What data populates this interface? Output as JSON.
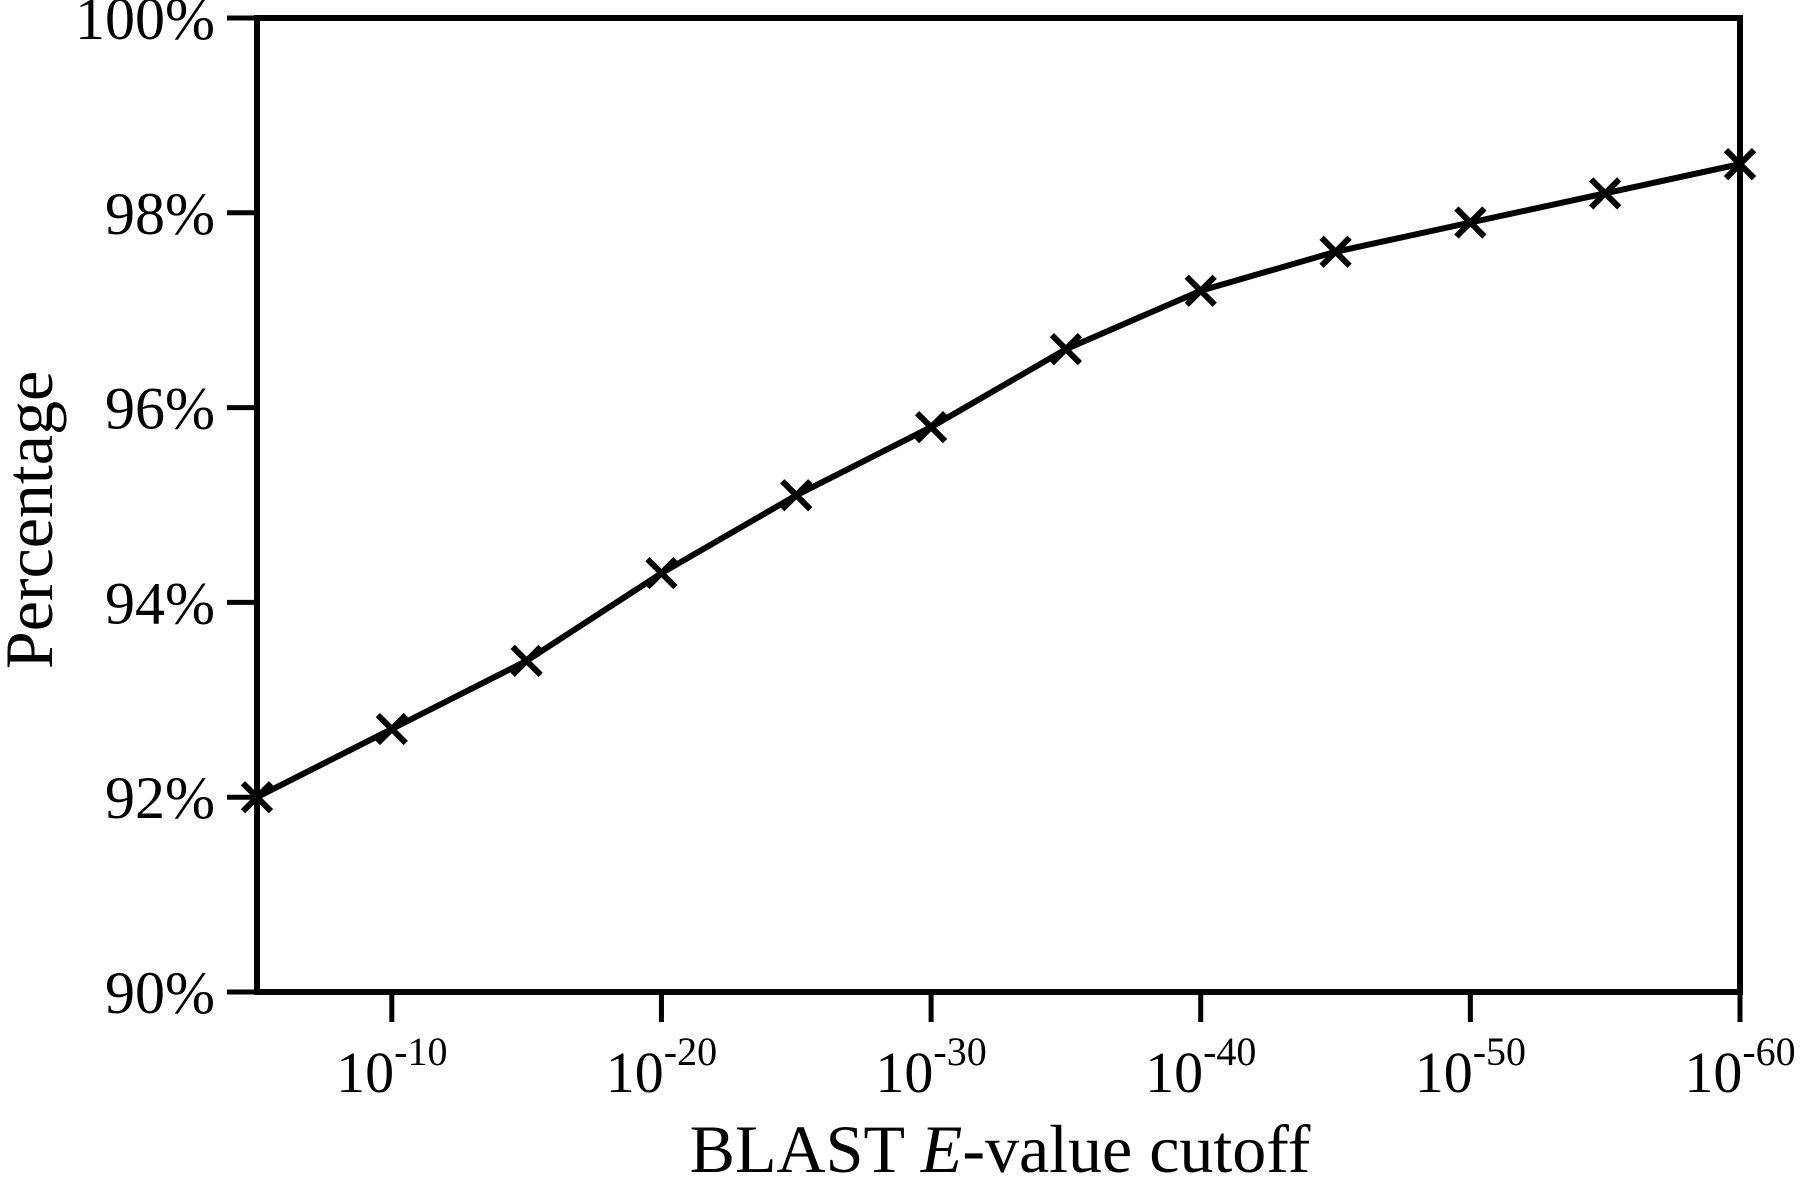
{
  "figure": {
    "background_color": "#ffffff",
    "ink_color": "#000000"
  },
  "chart_data": {
    "type": "line",
    "title": "",
    "xlabel": "BLAST E-value cutoff",
    "xlabel_parts": [
      {
        "text": "BLAST ",
        "italic": false
      },
      {
        "text": "E",
        "italic": true
      },
      {
        "text": "-value cutoff",
        "italic": false
      }
    ],
    "ylabel": "Percentage",
    "x_scale": "log10",
    "x_range_exponents": [
      -5,
      -60
    ],
    "x_exponents": [
      -5,
      -10,
      -15,
      -20,
      -25,
      -30,
      -35,
      -40,
      -45,
      -50,
      -55,
      -60
    ],
    "series": [
      {
        "name": "Percentage",
        "marker": "x-cross",
        "color": "#000000",
        "values": [
          92.0,
          92.7,
          93.4,
          94.3,
          95.1,
          95.8,
          96.6,
          97.2,
          97.6,
          97.9,
          98.2,
          98.5
        ]
      }
    ],
    "ylim": [
      90,
      100
    ],
    "y_ticks": [
      {
        "value": 100,
        "label": "100%"
      },
      {
        "value": 98,
        "label": "98%"
      },
      {
        "value": 96,
        "label": "96%"
      },
      {
        "value": 94,
        "label": "94%"
      },
      {
        "value": 92,
        "label": "92%"
      },
      {
        "value": 90,
        "label": "90%"
      }
    ],
    "x_ticks": [
      {
        "exponent": -10,
        "base": "10",
        "sup": "-10"
      },
      {
        "exponent": -20,
        "base": "10",
        "sup": "-20"
      },
      {
        "exponent": -30,
        "base": "10",
        "sup": "-30"
      },
      {
        "exponent": -40,
        "base": "10",
        "sup": "-40"
      },
      {
        "exponent": -50,
        "base": "10",
        "sup": "-50"
      },
      {
        "exponent": -60,
        "base": "10",
        "sup": "-60"
      }
    ],
    "grid": false,
    "legend": "none",
    "frame": "full-box"
  }
}
